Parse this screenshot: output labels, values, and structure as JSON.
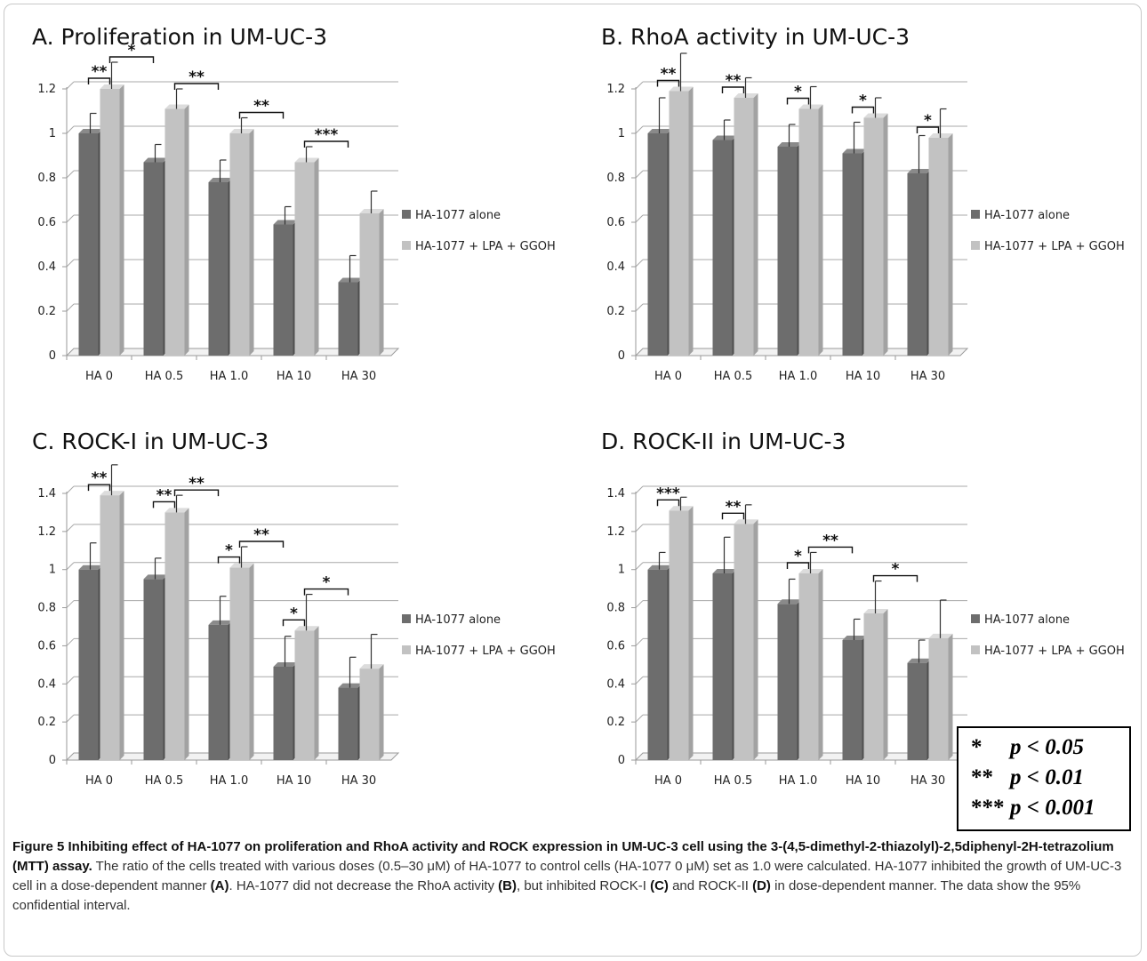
{
  "chart_data": [
    {
      "type": "bar",
      "title": "A. Proliferation in UM-UC-3",
      "categories": [
        "HA 0",
        "HA 0.5",
        "HA 1.0",
        "HA 10",
        "HA 30"
      ],
      "series": [
        {
          "name": "HA-1077 alone",
          "values": [
            1.0,
            0.87,
            0.78,
            0.59,
            0.33
          ],
          "error": [
            0.09,
            0.08,
            0.1,
            0.08,
            0.12
          ]
        },
        {
          "name": "HA-1077 + LPA + GGOH",
          "values": [
            1.2,
            1.11,
            1.0,
            0.87,
            0.64
          ],
          "error": [
            0.12,
            0.09,
            0.07,
            0.07,
            0.1
          ]
        }
      ],
      "ylim": [
        0,
        1.2
      ],
      "yticks": [
        "0",
        "0.2",
        "0.4",
        "0.6",
        "0.8",
        "1",
        "1.2"
      ],
      "grid": true,
      "legend": "right",
      "significance": [
        {
          "label": "**",
          "from": 0,
          "to": 0,
          "type": "within"
        },
        {
          "label": "*",
          "from": 0,
          "to": 1,
          "type": "between"
        },
        {
          "label": "**",
          "from": 1,
          "to": 2,
          "type": "between"
        },
        {
          "label": "**",
          "from": 2,
          "to": 3,
          "type": "between"
        },
        {
          "label": "***",
          "from": 3,
          "to": 4,
          "type": "between"
        }
      ]
    },
    {
      "type": "bar",
      "title": "B. RhoA activity in UM-UC-3",
      "categories": [
        "HA 0",
        "HA 0.5",
        "HA 1.0",
        "HA 10",
        "HA 30"
      ],
      "series": [
        {
          "name": "HA-1077 alone",
          "values": [
            1.0,
            0.97,
            0.94,
            0.91,
            0.82
          ],
          "error": [
            0.16,
            0.09,
            0.1,
            0.14,
            0.17
          ]
        },
        {
          "name": "HA-1077 + LPA + GGOH",
          "values": [
            1.19,
            1.16,
            1.11,
            1.07,
            0.98
          ],
          "error": [
            0.17,
            0.09,
            0.1,
            0.09,
            0.13
          ]
        }
      ],
      "ylim": [
        0,
        1.2
      ],
      "yticks": [
        "0",
        "0.2",
        "0.4",
        "0.6",
        "0.8",
        "1",
        "1.2"
      ],
      "grid": true,
      "legend": "right",
      "significance": [
        {
          "label": "**",
          "from": 0,
          "to": 0,
          "type": "within"
        },
        {
          "label": "**",
          "from": 1,
          "to": 1,
          "type": "within"
        },
        {
          "label": "*",
          "from": 2,
          "to": 2,
          "type": "within"
        },
        {
          "label": "*",
          "from": 3,
          "to": 3,
          "type": "within"
        },
        {
          "label": "*",
          "from": 4,
          "to": 4,
          "type": "within"
        }
      ]
    },
    {
      "type": "bar",
      "title": "C. ROCK-I in UM-UC-3",
      "categories": [
        "HA 0",
        "HA 0.5",
        "HA 1.0",
        "HA 10",
        "HA 30"
      ],
      "series": [
        {
          "name": "HA-1077 alone",
          "values": [
            1.0,
            0.95,
            0.71,
            0.49,
            0.38
          ],
          "error": [
            0.14,
            0.11,
            0.15,
            0.16,
            0.16
          ]
        },
        {
          "name": "HA-1077 + LPA + GGOH",
          "values": [
            1.39,
            1.3,
            1.01,
            0.68,
            0.48
          ],
          "error": [
            0.16,
            0.09,
            0.11,
            0.19,
            0.18
          ]
        }
      ],
      "ylim": [
        0,
        1.4
      ],
      "yticks": [
        "0",
        "0.2",
        "0.4",
        "0.6",
        "0.8",
        "1",
        "1.2",
        "1.4"
      ],
      "grid": true,
      "legend": "right",
      "significance": [
        {
          "label": "**",
          "from": 0,
          "to": 0,
          "type": "within"
        },
        {
          "label": "**",
          "from": 1,
          "to": 1,
          "type": "within"
        },
        {
          "label": "**",
          "from": 1,
          "to": 2,
          "type": "between"
        },
        {
          "label": "*",
          "from": 2,
          "to": 2,
          "type": "within"
        },
        {
          "label": "**",
          "from": 2,
          "to": 3,
          "type": "between"
        },
        {
          "label": "*",
          "from": 3,
          "to": 3,
          "type": "within"
        },
        {
          "label": "*",
          "from": 3,
          "to": 4,
          "type": "between"
        }
      ]
    },
    {
      "type": "bar",
      "title": "D. ROCK-II in UM-UC-3",
      "categories": [
        "HA 0",
        "HA 0.5",
        "HA 1.0",
        "HA 10",
        "HA 30"
      ],
      "series": [
        {
          "name": "HA-1077 alone",
          "values": [
            1.0,
            0.98,
            0.82,
            0.63,
            0.51
          ],
          "error": [
            0.09,
            0.19,
            0.13,
            0.11,
            0.12
          ]
        },
        {
          "name": "HA-1077 + LPA + GGOH",
          "values": [
            1.31,
            1.24,
            0.98,
            0.77,
            0.64
          ],
          "error": [
            0.07,
            0.1,
            0.11,
            0.17,
            0.2
          ]
        }
      ],
      "ylim": [
        0,
        1.4
      ],
      "yticks": [
        "0",
        "0.2",
        "0.4",
        "0.6",
        "0.8",
        "1",
        "1.2",
        "1.4"
      ],
      "grid": true,
      "legend": "right",
      "significance": [
        {
          "label": "***",
          "from": 0,
          "to": 0,
          "type": "within"
        },
        {
          "label": "**",
          "from": 1,
          "to": 1,
          "type": "within"
        },
        {
          "label": "*",
          "from": 2,
          "to": 2,
          "type": "within"
        },
        {
          "label": "**",
          "from": 2,
          "to": 3,
          "type": "between"
        },
        {
          "label": "*",
          "from": 3,
          "to": 4,
          "type": "between"
        }
      ]
    }
  ],
  "colors": {
    "series_dark": "#6d6d6d",
    "series_light": "#c2c2c2",
    "grid": "#a8a8a8",
    "axis": "#9a9a9a"
  },
  "pvalue_key": [
    {
      "stars": "*",
      "text": "p < 0.05"
    },
    {
      "stars": "**",
      "text": "p < 0.01"
    },
    {
      "stars": "***",
      "text": "p < 0.001"
    }
  ],
  "caption": {
    "title": "Figure 5 Inhibiting effect of HA-1077 on proliferation and RhoA activity and ROCK expression in UM-UC-3 cell using the 3-(4,5-dimethyl-2-thiazolyl)-2,5diphenyl-2H-tetrazolium (MTT) assay.",
    "body_1": " The ratio of the cells treated with various doses (0.5–30 μM) of HA-1077 to control cells (HA-1077 0 μM) set as 1.0 were calculated. HA-1077 inhibited the growth of UM-UC-3 cell in a dose-dependent manner ",
    "ref_a": "(A)",
    "body_2": ". HA-1077 did not decrease the RhoA activity ",
    "ref_b": "(B)",
    "body_3": ", but inhibited ROCK-I ",
    "ref_c": "(C)",
    "body_4": " and ROCK-II ",
    "ref_d": "(D)",
    "body_5": " in dose-dependent manner. The data show the 95% confidential interval."
  }
}
